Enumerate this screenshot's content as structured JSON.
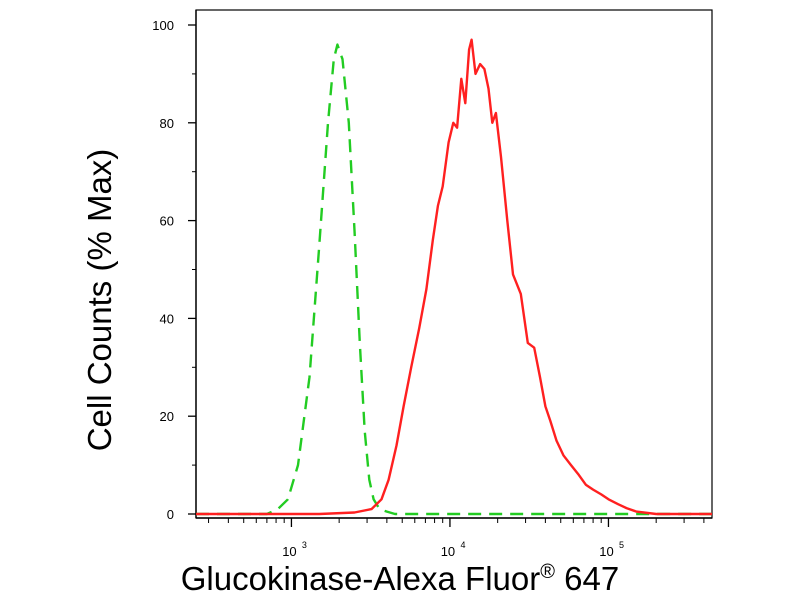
{
  "chart_data": {
    "type": "line",
    "title": "",
    "xlabel_main": "Glucokinase-Alexa Fluor",
    "xlabel_mark": "®",
    "xlabel_tail": " 647",
    "ylabel": "Cell Counts (% Max)",
    "x_scale": "log",
    "xlim": [
      250,
      450000
    ],
    "ylim": [
      0,
      100
    ],
    "x_ticks": [
      {
        "value": 1000,
        "base": "10",
        "exp": "3"
      },
      {
        "value": 10000,
        "base": "10",
        "exp": "4"
      },
      {
        "value": 100000,
        "base": "10",
        "exp": "5"
      }
    ],
    "y_ticks": [
      0,
      20,
      40,
      60,
      80,
      100
    ],
    "grid": false,
    "legend": "none",
    "series": [
      {
        "color": "#22cc22",
        "style": "dashed",
        "x": [
          250,
          700,
          820,
          950,
          1100,
          1300,
          1500,
          1700,
          1850,
          1950,
          2100,
          2300,
          2500,
          2700,
          2900,
          3100,
          3300,
          3600,
          4000,
          4500,
          6000,
          20000,
          100000,
          450000
        ],
        "y": [
          0,
          0,
          1,
          3,
          10,
          28,
          55,
          80,
          93,
          96,
          93,
          80,
          58,
          35,
          17,
          7,
          3,
          1,
          0.5,
          0,
          0,
          0,
          0,
          0
        ]
      },
      {
        "color": "#ff2020",
        "style": "solid",
        "x": [
          250,
          1500,
          2500,
          3200,
          3700,
          4100,
          4600,
          5100,
          5700,
          6400,
          7100,
          7800,
          8400,
          9000,
          9800,
          10500,
          11100,
          11800,
          12500,
          13200,
          13700,
          14500,
          15500,
          16500,
          17500,
          18500,
          19500,
          21000,
          23000,
          25000,
          28000,
          31000,
          34000,
          37000,
          40000,
          43000,
          47000,
          52000,
          58000,
          65000,
          72000,
          80000,
          90000,
          100000,
          115000,
          130000,
          150000,
          200000,
          450000
        ],
        "y": [
          0,
          0,
          0.3,
          1,
          3,
          7,
          14,
          22,
          30,
          38,
          46,
          56,
          63,
          67,
          76,
          80,
          79,
          89,
          84,
          95,
          97,
          90,
          92,
          91,
          87,
          80,
          82,
          73,
          60,
          49,
          45,
          35,
          34,
          28,
          22,
          19,
          15,
          12,
          10,
          8,
          6,
          5,
          4,
          3,
          2,
          1.2,
          0.5,
          0,
          0
        ]
      }
    ]
  }
}
